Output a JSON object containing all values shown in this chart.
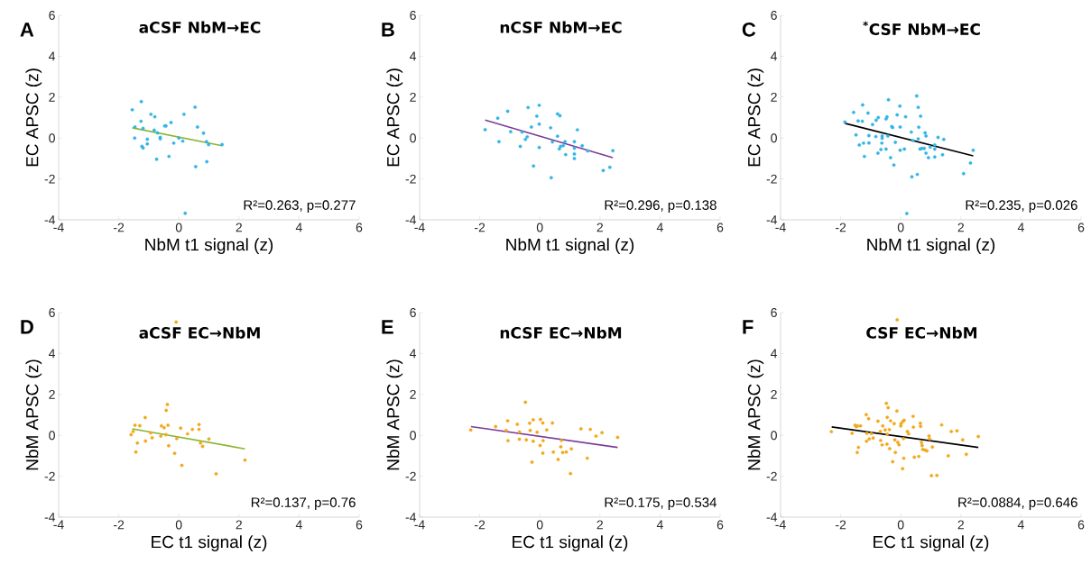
{
  "chart_data": [
    {
      "type": "scatter",
      "title": "aCSF NbM→EC",
      "xlabel": "NbM t1 signal (z)",
      "ylabel": "EC APSC (z)",
      "xlim": [
        -4,
        6
      ],
      "ylim": [
        -4,
        6
      ],
      "xticks": [
        -4,
        -2,
        0,
        2,
        4,
        6
      ],
      "yticks": [
        -4,
        -2,
        0,
        2,
        4,
        6
      ],
      "marker": "circle",
      "annotations": [
        "A",
        "R²=0.263, p=0.277"
      ],
      "series": [
        {
          "type": "scatter",
          "color": "#33b5e5",
          "x": [
            -1.55,
            -1.25,
            -0.93,
            -0.8,
            -1.46,
            -1.26,
            -1.19,
            -1.47,
            -0.82,
            -0.71,
            -0.47,
            -0.43,
            -0.26,
            -1.05,
            -0.62,
            -0.62,
            -1.05,
            -1.23,
            -1.19,
            -0.17,
            0.0,
            0.13,
            0.17,
            0.54,
            0.62,
            0.82,
            0.92,
            0.99,
            1.44,
            -0.74,
            -0.33,
            0.56,
            0.93,
            0.21
          ],
          "values": [
            1.38,
            1.78,
            1.16,
            1.04,
            0.54,
            0.82,
            0.47,
            0.0,
            0.38,
            0.25,
            0.59,
            0.59,
            0.76,
            -0.06,
            0.03,
            -0.04,
            -0.29,
            -0.41,
            -0.49,
            -0.25,
            0.0,
            -0.15,
            1.16,
            1.51,
            0.54,
            0.24,
            -0.18,
            -0.32,
            -0.32,
            -1.04,
            -0.9,
            -1.4,
            -1.16,
            -3.68
          ]
        },
        {
          "type": "line",
          "marker": "none",
          "color": "#8ab534",
          "x": [
            -1.55,
            1.44
          ],
          "values": [
            0.5,
            -0.38
          ]
        }
      ]
    },
    {
      "type": "scatter",
      "title": "nCSF NbM→EC",
      "xlabel": "NbM t1 signal (z)",
      "ylabel": "EC APSC (z)",
      "xlim": [
        -4,
        6
      ],
      "ylim": [
        -4,
        6
      ],
      "xticks": [
        -4,
        -2,
        0,
        2,
        4,
        6
      ],
      "yticks": [
        -4,
        -2,
        0,
        2,
        4,
        6
      ],
      "marker": "circle",
      "annotations": [
        "B",
        "R²=0.296, p=0.138"
      ],
      "series": [
        {
          "type": "scatter",
          "color": "#33b5e5",
          "x": [
            -1.82,
            -1.4,
            -1.07,
            -1.36,
            -0.97,
            -0.65,
            -0.59,
            -0.48,
            -0.42,
            -0.39,
            -0.28,
            -0.1,
            -0.02,
            -0.02,
            -0.02,
            -0.21,
            0.36,
            0.59,
            0.67,
            0.59,
            0.42,
            0.65,
            0.69,
            0.78,
            0.84,
            0.86,
            1.15,
            1.15,
            1.15,
            1.15,
            1.25,
            1.41,
            1.59,
            0.38,
            2.11,
            2.33,
            2.43
          ],
          "values": [
            0.41,
            0.97,
            1.31,
            -0.18,
            0.31,
            -0.41,
            0.29,
            -0.07,
            0.06,
            1.49,
            0.54,
            1.07,
            1.6,
            0.68,
            -0.46,
            -1.37,
            0.5,
            1.18,
            1.09,
            0.09,
            -0.19,
            -0.53,
            -0.41,
            -0.37,
            -0.18,
            -0.81,
            -0.18,
            -0.5,
            -0.78,
            -1.0,
            0.4,
            -0.38,
            -0.63,
            -1.94,
            -1.59,
            -1.43,
            -0.62
          ]
        },
        {
          "type": "line",
          "marker": "none",
          "color": "#7d3c98",
          "x": [
            -1.82,
            2.43
          ],
          "values": [
            0.88,
            -0.96
          ]
        }
      ]
    },
    {
      "type": "scatter",
      "title": "$^{*}$CSF NbM→EC",
      "xlabel": "NbM t1 signal (z)",
      "ylabel": "EC APSC (z)",
      "xlim": [
        -4,
        6
      ],
      "ylim": [
        -4,
        6
      ],
      "xticks": [
        -4,
        -2,
        0,
        2,
        4,
        6
      ],
      "yticks": [
        -4,
        -2,
        0,
        2,
        4,
        6
      ],
      "marker": "circle",
      "annotations": [
        "C",
        "R²=0.235, p=0.026"
      ],
      "series": [
        {
          "type": "scatter",
          "color": "#33b5e5",
          "x": [
            -1.86,
            -1.57,
            -1.27,
            -1.09,
            -1.42,
            -1.28,
            -1.49,
            -1.38,
            -1.24,
            -1.21,
            -1.06,
            -1.06,
            -0.94,
            -0.82,
            -0.75,
            -0.83,
            -0.76,
            -0.66,
            -0.63,
            -0.62,
            -0.62,
            -0.49,
            -0.46,
            -0.49,
            -0.43,
            -0.41,
            -0.3,
            -0.27,
            -0.34,
            -0.23,
            -0.18,
            -0.12,
            -0.03,
            -0.02,
            -0.02,
            0.12,
            0.16,
            0.35,
            0.4,
            0.53,
            0.58,
            0.66,
            0.6,
            0.58,
            0.64,
            0.7,
            0.78,
            0.81,
            0.84,
            0.84,
            0.92,
            0.98,
            1.13,
            1.13,
            1.13,
            1.24,
            1.39,
            1.43,
            0.37,
            0.55,
            2.09,
            2.32,
            2.41,
            0.2
          ],
          "values": [
            0.78,
            1.25,
            1.62,
            1.22,
            0.84,
            0.82,
            0.15,
            -0.34,
            -0.25,
            -0.9,
            0.12,
            -0.24,
            0.66,
            0.87,
            1.0,
            0.07,
            -0.74,
            -0.56,
            -0.25,
            0.1,
            -0.01,
            0.93,
            1.03,
            -0.54,
            0.1,
            1.87,
            0.56,
            0.51,
            -0.96,
            -1.32,
            -0.21,
            1.13,
            1.56,
            0.54,
            -0.6,
            -0.54,
            1.04,
            0.29,
            -0.12,
            2.06,
            1.5,
            1.07,
            0.53,
            -0.04,
            -0.54,
            -0.51,
            -0.51,
            0.25,
            0.1,
            -0.74,
            -0.96,
            -0.44,
            -0.34,
            -0.54,
            -0.93,
            0.03,
            -0.82,
            -0.07,
            -1.9,
            -1.78,
            -1.74,
            -1.22,
            -0.6,
            -3.69
          ]
        },
        {
          "type": "line",
          "marker": "none",
          "color": "#000000",
          "x": [
            -1.86,
            2.41
          ],
          "values": [
            0.72,
            -0.87
          ]
        }
      ]
    },
    {
      "type": "scatter",
      "title": "aCSF EC→NbM",
      "xlabel": "EC t1 signal (z)",
      "ylabel": "NbM APSC (z)",
      "xlim": [
        -4,
        6
      ],
      "ylim": [
        -4,
        6
      ],
      "xticks": [
        -4,
        -2,
        0,
        2,
        4,
        6
      ],
      "yticks": [
        -4,
        -2,
        0,
        2,
        4,
        6
      ],
      "marker": "circle",
      "annotations": [
        "D",
        "R²=0.137, p=0.76"
      ],
      "series": [
        {
          "type": "scatter",
          "color": "#f2a81d",
          "x": [
            -0.09,
            -1.59,
            -1.52,
            -1.46,
            -1.3,
            -1.38,
            -1.43,
            -1.12,
            -1.11,
            -0.94,
            -0.89,
            -0.6,
            -0.58,
            -0.49,
            -0.43,
            -0.42,
            -0.38,
            -0.36,
            -0.34,
            -0.14,
            -0.07,
            0.06,
            0.1,
            0.29,
            0.45,
            0.67,
            0.67,
            0.72,
            0.79,
            1.0,
            1.24,
            2.2
          ],
          "values": [
            5.54,
            0.03,
            0.19,
            0.49,
            0.47,
            -0.38,
            -0.82,
            0.87,
            -0.28,
            0.12,
            -0.12,
            -0.04,
            0.46,
            0.37,
            0.03,
            1.22,
            1.51,
            0.49,
            -0.51,
            -0.88,
            -0.16,
            0.35,
            -1.47,
            0.07,
            0.29,
            0.53,
            0.29,
            -0.38,
            -0.54,
            -0.18,
            -1.88,
            -1.21
          ]
        },
        {
          "type": "line",
          "marker": "none",
          "color": "#8ab534",
          "x": [
            -1.55,
            2.2
          ],
          "values": [
            0.32,
            -0.66
          ]
        }
      ]
    },
    {
      "type": "scatter",
      "title": "nCSF EC→NbM",
      "xlabel": "EC t1 signal (z)",
      "ylabel": "NbM APSC (z)",
      "xlim": [
        -4,
        6
      ],
      "ylim": [
        -4,
        6
      ],
      "xticks": [
        -4,
        -2,
        0,
        2,
        4,
        6
      ],
      "yticks": [
        -4,
        -2,
        0,
        2,
        4,
        6
      ],
      "marker": "circle",
      "annotations": [
        "E",
        "R²=0.175, p=0.534"
      ],
      "series": [
        {
          "type": "scatter",
          "color": "#f2a81d",
          "x": [
            -2.3,
            -1.47,
            -1.07,
            -1.12,
            -1.06,
            -0.75,
            -0.68,
            -0.68,
            -0.48,
            -0.45,
            -0.34,
            -0.32,
            -0.22,
            -0.22,
            -0.09,
            -0.26,
            0.01,
            0.02,
            0.1,
            0.11,
            0.1,
            0.23,
            0.42,
            0.45,
            0.61,
            0.7,
            0.72,
            0.76,
            0.88,
            1.05,
            1.02,
            1.37,
            1.58,
            1.68,
            1.87,
            2.07,
            2.59
          ],
          "values": [
            0.26,
            0.43,
            0.71,
            0.24,
            -0.26,
            0.54,
            0.16,
            -0.19,
            1.62,
            -0.22,
            0.59,
            0.24,
            0.76,
            -0.29,
            0.15,
            -1.31,
            -0.5,
            0.78,
            0.6,
            -0.26,
            -0.87,
            0.26,
            0.6,
            -0.82,
            -1.18,
            -0.56,
            -0.25,
            -0.84,
            -0.82,
            -0.66,
            -1.87,
            0.32,
            -1.12,
            0.29,
            -0.04,
            0.13,
            -0.1
          ]
        },
        {
          "type": "line",
          "marker": "none",
          "color": "#7d3c98",
          "x": [
            -2.29,
            2.59
          ],
          "values": [
            0.43,
            -0.59
          ]
        }
      ]
    },
    {
      "type": "scatter",
      "title": "CSF EC→NbM",
      "xlabel": "EC t1 signal (z)",
      "ylabel": "NbM APSC (z)",
      "xlim": [
        -4,
        6
      ],
      "ylim": [
        -4,
        6
      ],
      "xticks": [
        -4,
        -2,
        0,
        2,
        4,
        6
      ],
      "yticks": [
        -4,
        -2,
        0,
        2,
        4,
        6
      ],
      "marker": "circle",
      "annotations": [
        "F",
        "R²=0.0884, p=0.646"
      ],
      "series": [
        {
          "type": "scatter",
          "color": "#f2a81d",
          "x": [
            -0.12,
            -2.31,
            -1.62,
            -1.52,
            -1.48,
            -1.44,
            -1.34,
            -1.41,
            -1.45,
            -1.15,
            -1.07,
            -1.13,
            -1.14,
            -1.05,
            -0.98,
            -0.92,
            -0.76,
            -0.68,
            -0.67,
            -0.62,
            -0.6,
            -0.52,
            -0.48,
            -0.42,
            -0.45,
            -0.45,
            -0.46,
            -0.38,
            -0.34,
            -0.37,
            -0.27,
            -0.22,
            -0.2,
            -0.18,
            -0.13,
            -0.1,
            -0.06,
            0.0,
            0.01,
            0.07,
            0.11,
            0.09,
            0.1,
            0.06,
            0.22,
            0.26,
            0.41,
            0.42,
            0.45,
            0.6,
            0.65,
            0.66,
            0.69,
            0.71,
            0.73,
            0.8,
            0.87,
            0.94,
            0.96,
            1.05,
            1.02,
            1.2,
            1.36,
            1.58,
            1.68,
            1.87,
            2.06,
            2.18,
            2.58
          ],
          "values": [
            5.65,
            0.18,
            0.1,
            0.49,
            0.43,
            0.46,
            0.46,
            -0.59,
            -0.84,
            1.01,
            0.81,
            0.1,
            -0.29,
            -0.18,
            0.09,
            -0.13,
            0.69,
            0.19,
            -0.25,
            -0.47,
            0.46,
            0.26,
            1.56,
            1.35,
            0.88,
            0.06,
            -0.43,
            0.28,
            0.71,
            -0.65,
            -1.29,
            0.57,
            -0.22,
            -0.84,
            1.19,
            -0.34,
            -0.46,
            0.46,
            0.57,
            0.68,
            0.74,
            -0.16,
            -1.12,
            -1.63,
            0.19,
            0.07,
            0.93,
            0.4,
            -1.07,
            -1.03,
            0.59,
            0.44,
            -0.35,
            -0.5,
            -0.69,
            -0.72,
            -0.76,
            -0.03,
            -0.18,
            -0.57,
            -1.97,
            -1.96,
            0.51,
            -1.0,
            0.19,
            0.22,
            -0.22,
            -0.93,
            -0.06
          ]
        },
        {
          "type": "line",
          "marker": "none",
          "color": "#000000",
          "x": [
            -2.3,
            2.58
          ],
          "values": [
            0.41,
            -0.59
          ]
        }
      ]
    }
  ]
}
